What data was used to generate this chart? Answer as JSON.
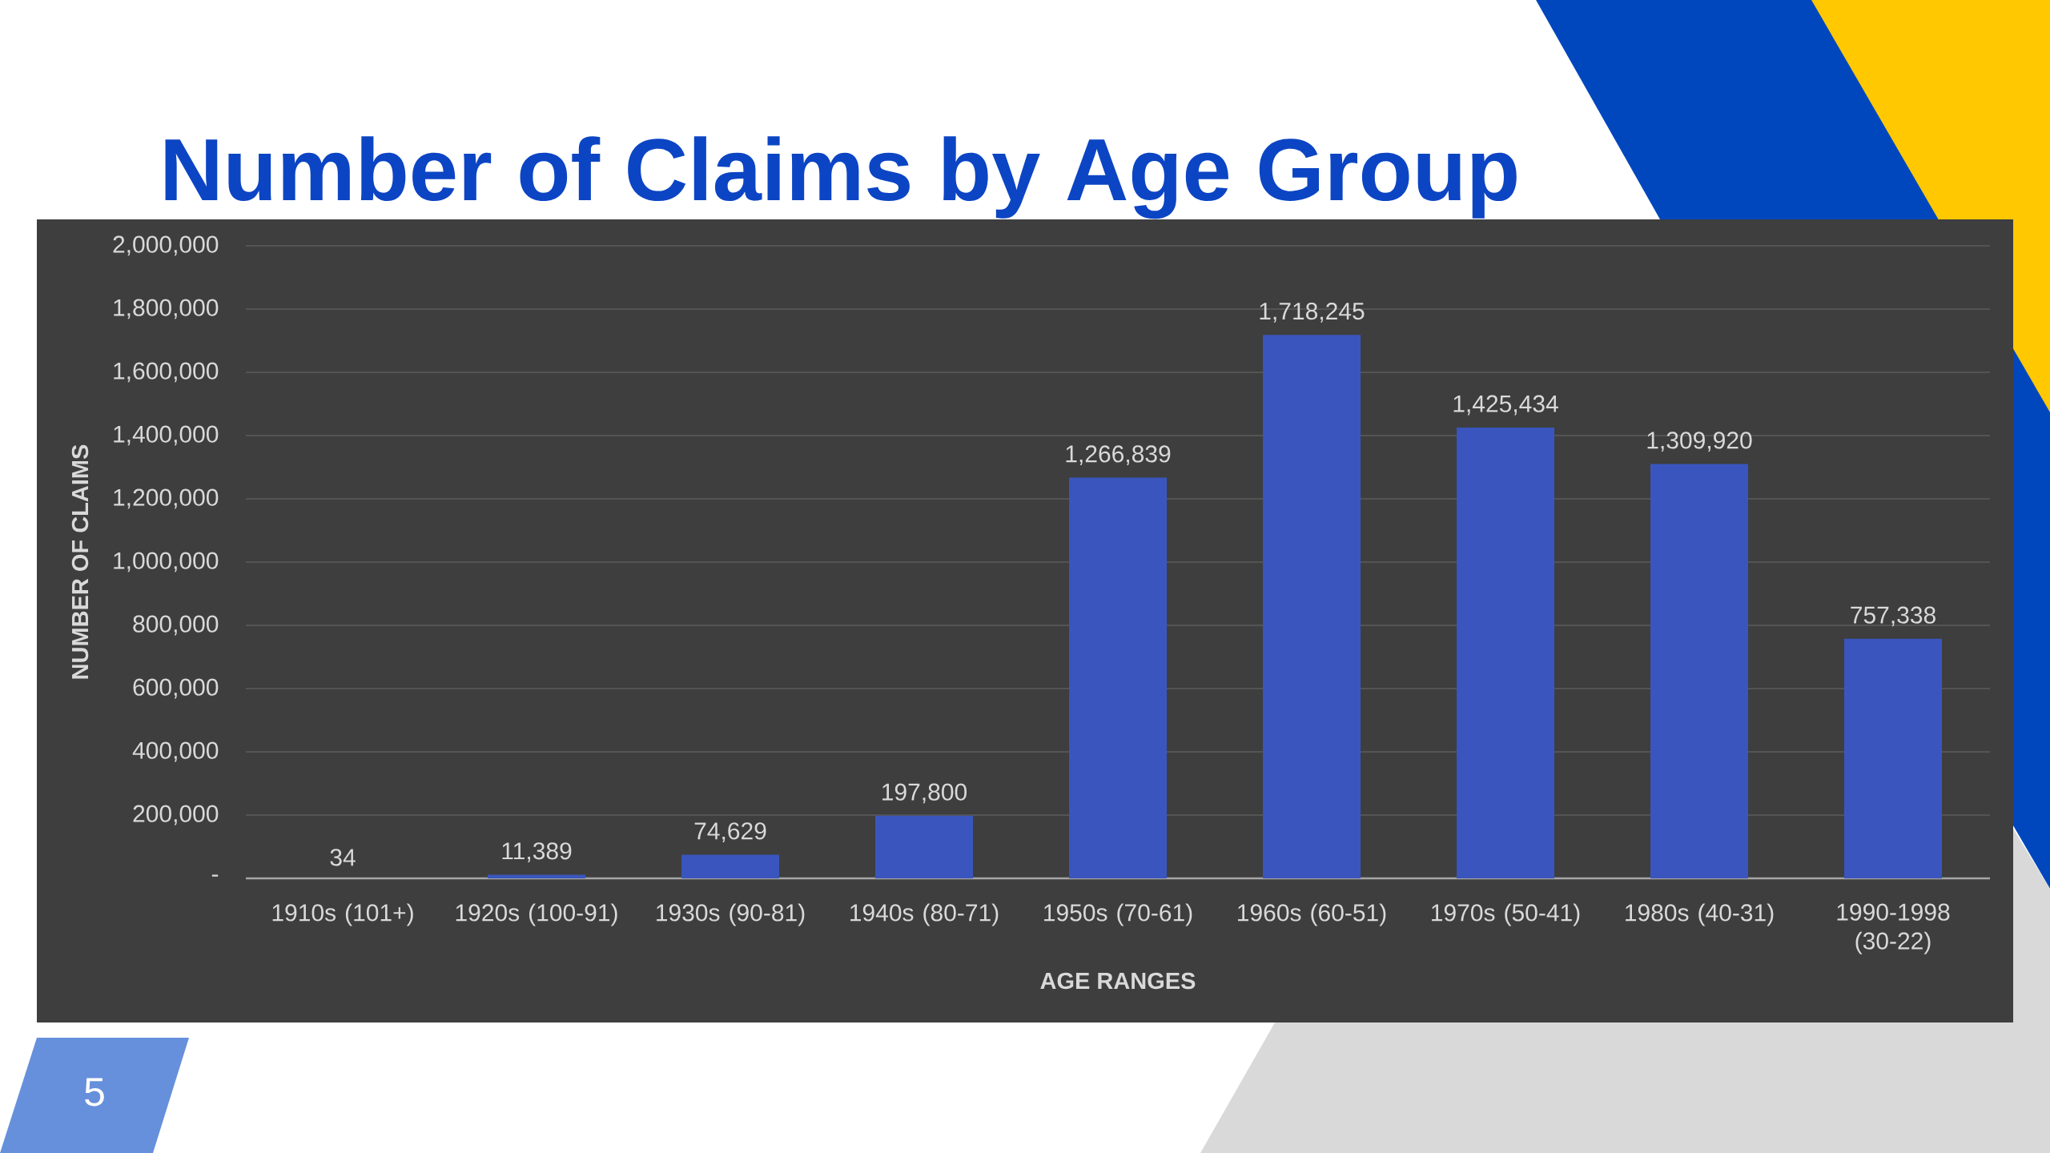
{
  "chart_data": {
    "type": "bar",
    "title": "Number of Claims by Age Group",
    "xlabel": "AGE RANGES",
    "ylabel": "NUMBER OF CLAIMS",
    "categories": [
      "1910s (101+)",
      "1920s (100-91)",
      "1930s (90-81)",
      "1940s (80-71)",
      "1950s (70-61)",
      "1960s (60-51)",
      "1970s (50-41)",
      "1980s (40-31)",
      "1990-1998 (30-22)"
    ],
    "values": [
      34,
      11389,
      74629,
      197800,
      1266839,
      1718245,
      1425434,
      1309920,
      757338
    ],
    "value_labels": [
      "34",
      "11,389",
      "74,629",
      "197,800",
      "1,266,839",
      "1,718,245",
      "1,425,434",
      "1,309,920",
      "757,338"
    ],
    "color": "#3a56be",
    "ylim": [
      0,
      2000000
    ],
    "yticks": [
      {
        "value": 0,
        "label": "-"
      },
      {
        "value": 200000,
        "label": "200,000"
      },
      {
        "value": 400000,
        "label": "400,000"
      },
      {
        "value": 600000,
        "label": "600,000"
      },
      {
        "value": 800000,
        "label": "800,000"
      },
      {
        "value": 1000000,
        "label": "1,000,000"
      },
      {
        "value": 1200000,
        "label": "1,200,000"
      },
      {
        "value": 1400000,
        "label": "1,400,000"
      },
      {
        "value": 1600000,
        "label": "1,600,000"
      },
      {
        "value": 1800000,
        "label": "1,800,000"
      },
      {
        "value": 2000000,
        "label": "2,000,000"
      }
    ],
    "grid": "y",
    "annotations": [
      "5"
    ]
  }
}
